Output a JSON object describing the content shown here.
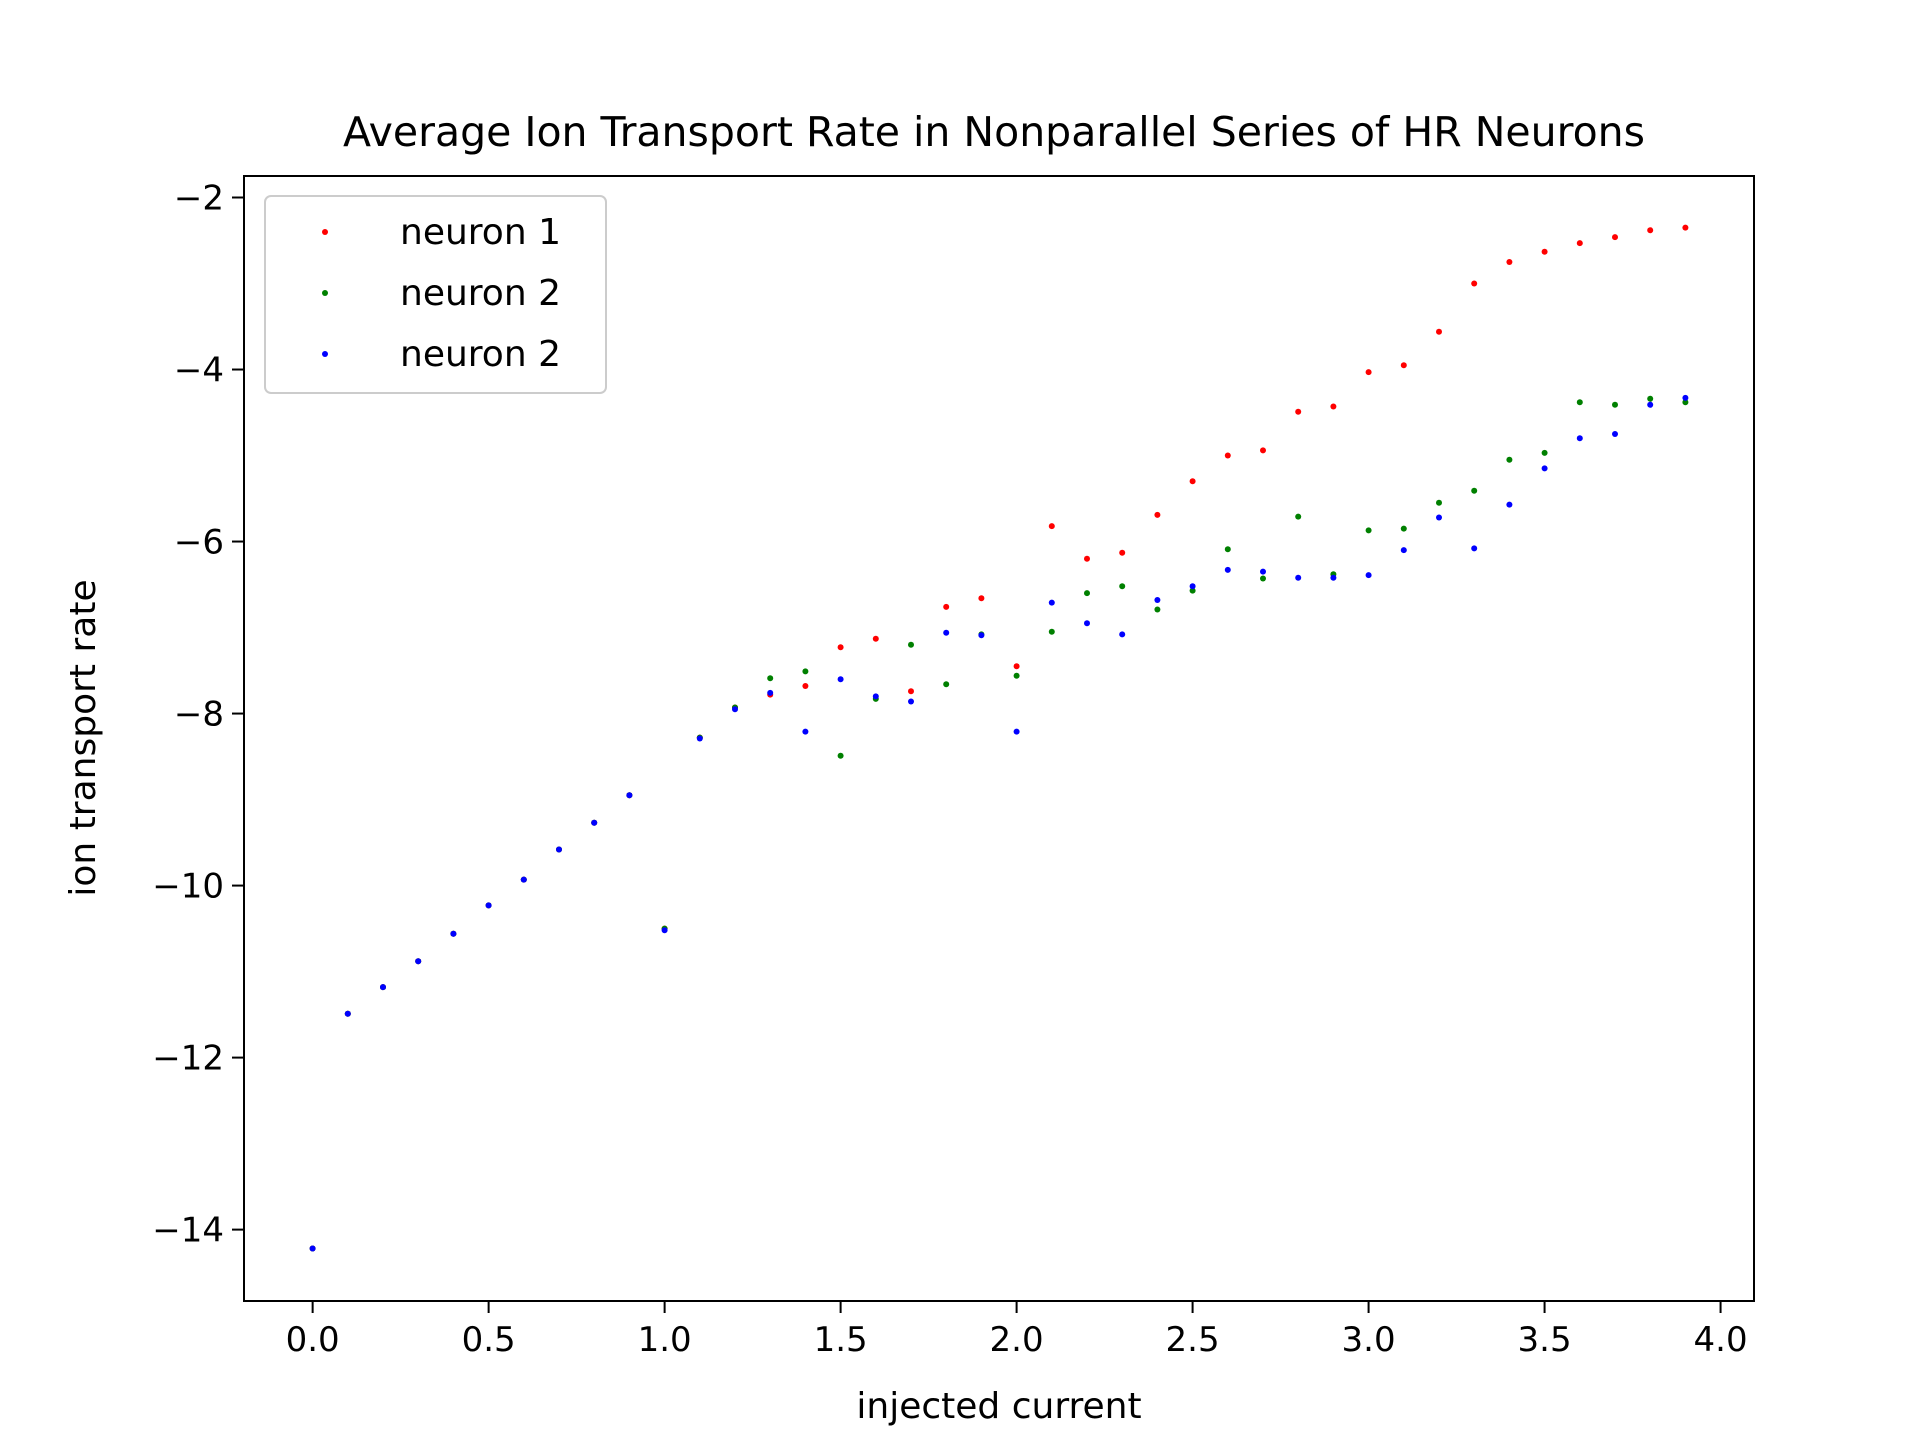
{
  "chart_data": {
    "type": "scatter",
    "title": "Average Ion Transport Rate in Nonparallel Series of HR Neurons",
    "xlabel": "injected current",
    "ylabel": "ion transport rate",
    "xlim": [
      -0.195,
      4.095
    ],
    "ylim": [
      -14.83,
      -1.75
    ],
    "xticks": [
      0.0,
      0.5,
      1.0,
      1.5,
      2.0,
      2.5,
      3.0,
      3.5,
      4.0
    ],
    "xtick_labels": [
      "0.0",
      "0.5",
      "1.0",
      "1.5",
      "2.0",
      "2.5",
      "3.0",
      "3.5",
      "4.0"
    ],
    "yticks": [
      -14,
      -12,
      -10,
      -8,
      -6,
      -4,
      -2
    ],
    "ytick_labels": [
      "−14",
      "−12",
      "−10",
      "−8",
      "−6",
      "−4",
      "−2"
    ],
    "grid": false,
    "legend_position": "top-left",
    "series": [
      {
        "name": "neuron 1",
        "color": "#ff0000",
        "x": [
          0.0,
          0.1,
          0.2,
          0.3,
          0.4,
          0.5,
          0.6,
          0.7,
          0.8,
          0.9,
          1.0,
          1.1,
          1.2,
          1.3,
          1.4,
          1.5,
          1.6,
          1.7,
          1.8,
          1.9,
          2.0,
          2.1,
          2.2,
          2.3,
          2.4,
          2.5,
          2.6,
          2.7,
          2.8,
          2.9,
          3.0,
          3.1,
          3.2,
          3.3,
          3.4,
          3.5,
          3.6,
          3.7,
          3.8,
          3.9
        ],
        "y": [
          -14.22,
          -11.49,
          -11.18,
          -10.88,
          -10.56,
          -10.23,
          -9.93,
          -9.58,
          -9.27,
          -8.95,
          -10.5,
          -8.28,
          -7.93,
          -7.78,
          -7.68,
          -7.23,
          -7.13,
          -7.74,
          -6.76,
          -6.66,
          -7.45,
          -5.82,
          -6.2,
          -6.13,
          -5.69,
          -5.3,
          -5.0,
          -4.94,
          -4.49,
          -4.43,
          -4.03,
          -3.95,
          -3.56,
          -3.0,
          -2.75,
          -2.63,
          -2.53,
          -2.46,
          -2.38,
          -2.35
        ]
      },
      {
        "name": "neuron 2",
        "color": "#008000",
        "x": [
          0.0,
          0.1,
          0.2,
          0.3,
          0.4,
          0.5,
          0.6,
          0.7,
          0.8,
          0.9,
          1.0,
          1.1,
          1.2,
          1.3,
          1.4,
          1.5,
          1.6,
          1.7,
          1.8,
          1.9,
          2.0,
          2.1,
          2.2,
          2.3,
          2.4,
          2.5,
          2.6,
          2.7,
          2.8,
          2.9,
          3.0,
          3.1,
          3.2,
          3.3,
          3.4,
          3.5,
          3.6,
          3.7,
          3.8,
          3.9
        ],
        "y": [
          -14.22,
          -11.49,
          -11.18,
          -10.88,
          -10.56,
          -10.23,
          -9.93,
          -9.58,
          -9.27,
          -8.95,
          -10.5,
          -8.28,
          -7.93,
          -7.59,
          -7.51,
          -8.49,
          -7.83,
          -7.2,
          -7.66,
          -7.08,
          -7.56,
          -7.05,
          -6.6,
          -6.52,
          -6.79,
          -6.57,
          -6.09,
          -6.43,
          -5.71,
          -6.38,
          -5.87,
          -5.85,
          -5.55,
          -5.41,
          -5.05,
          -4.97,
          -4.38,
          -4.41,
          -4.34,
          -4.38
        ]
      },
      {
        "name": "neuron 2",
        "color": "#0000ff",
        "x": [
          0.0,
          0.1,
          0.2,
          0.3,
          0.4,
          0.5,
          0.6,
          0.7,
          0.8,
          0.9,
          1.0,
          1.1,
          1.2,
          1.3,
          1.4,
          1.5,
          1.6,
          1.7,
          1.8,
          1.9,
          2.0,
          2.1,
          2.2,
          2.3,
          2.4,
          2.5,
          2.6,
          2.7,
          2.8,
          2.9,
          3.0,
          3.1,
          3.2,
          3.3,
          3.4,
          3.5,
          3.6,
          3.7,
          3.8,
          3.9
        ],
        "y": [
          -14.22,
          -11.49,
          -11.18,
          -10.88,
          -10.56,
          -10.23,
          -9.93,
          -9.58,
          -9.27,
          -8.95,
          -10.52,
          -8.29,
          -7.95,
          -7.76,
          -8.21,
          -7.6,
          -7.8,
          -7.86,
          -7.06,
          -7.09,
          -8.21,
          -6.71,
          -6.95,
          -7.08,
          -6.68,
          -6.52,
          -6.33,
          -6.35,
          -6.42,
          -6.42,
          -6.39,
          -6.1,
          -5.72,
          -6.08,
          -5.57,
          -5.15,
          -4.8,
          -4.75,
          -4.41,
          -4.33
        ]
      }
    ]
  }
}
